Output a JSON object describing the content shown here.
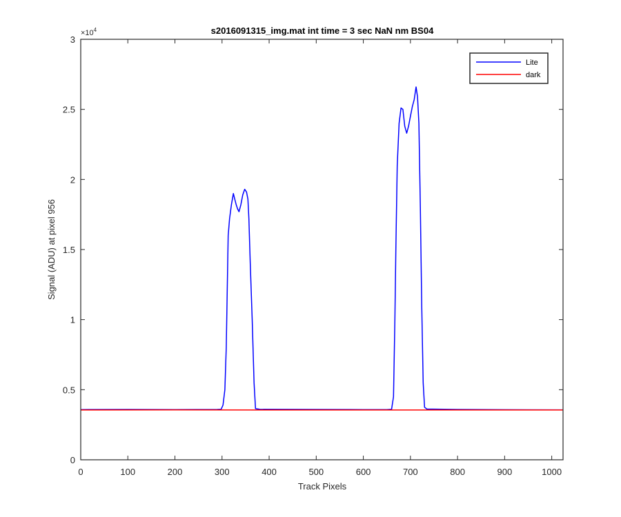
{
  "chart_data": {
    "type": "line",
    "title": "s2016091315_img.mat int time = 3 sec  NaN nm BS04",
    "xlabel": "Track Pixels",
    "ylabel": "Signal (ADU) at pixel 956",
    "xlim": [
      0,
      1024
    ],
    "ylim": [
      0,
      30000
    ],
    "x_ticks": [
      "0",
      "100",
      "200",
      "300",
      "400",
      "500",
      "600",
      "700",
      "800",
      "900",
      "1000"
    ],
    "y_ticks": [
      "0",
      "0.5",
      "1",
      "1.5",
      "2",
      "2.5",
      "3"
    ],
    "y_exponent": {
      "base": "×10",
      "power": "4"
    },
    "legend_position": "top-right",
    "grid": false,
    "series": [
      {
        "name": "Lite",
        "color": "#0000ff",
        "points": [
          [
            0,
            3580
          ],
          [
            100,
            3590
          ],
          [
            200,
            3580
          ],
          [
            290,
            3590
          ],
          [
            298,
            3600
          ],
          [
            302,
            3900
          ],
          [
            306,
            5000
          ],
          [
            309,
            8000
          ],
          [
            311,
            12000
          ],
          [
            313,
            16000
          ],
          [
            316,
            17200
          ],
          [
            320,
            18200
          ],
          [
            324,
            19000
          ],
          [
            327,
            18600
          ],
          [
            330,
            18200
          ],
          [
            333,
            17900
          ],
          [
            336,
            17700
          ],
          [
            340,
            18200
          ],
          [
            344,
            18900
          ],
          [
            348,
            19300
          ],
          [
            352,
            19100
          ],
          [
            355,
            18600
          ],
          [
            357,
            17200
          ],
          [
            360,
            14000
          ],
          [
            364,
            10000
          ],
          [
            368,
            5500
          ],
          [
            371,
            3650
          ],
          [
            380,
            3600
          ],
          [
            500,
            3590
          ],
          [
            600,
            3580
          ],
          [
            650,
            3580
          ],
          [
            660,
            3600
          ],
          [
            664,
            4500
          ],
          [
            667,
            10000
          ],
          [
            669,
            15000
          ],
          [
            672,
            21000
          ],
          [
            676,
            24000
          ],
          [
            680,
            25100
          ],
          [
            684,
            25000
          ],
          [
            688,
            23800
          ],
          [
            692,
            23300
          ],
          [
            696,
            23800
          ],
          [
            700,
            24500
          ],
          [
            704,
            25200
          ],
          [
            708,
            25700
          ],
          [
            712,
            26600
          ],
          [
            715,
            25900
          ],
          [
            718,
            24000
          ],
          [
            721,
            18000
          ],
          [
            724,
            11000
          ],
          [
            727,
            5500
          ],
          [
            730,
            3750
          ],
          [
            735,
            3620
          ],
          [
            800,
            3590
          ],
          [
            900,
            3570
          ],
          [
            1024,
            3560
          ]
        ]
      },
      {
        "name": "dark",
        "color": "#ff0000",
        "points": [
          [
            0,
            3550
          ],
          [
            200,
            3560
          ],
          [
            400,
            3550
          ],
          [
            600,
            3555
          ],
          [
            800,
            3550
          ],
          [
            1024,
            3550
          ]
        ]
      }
    ]
  }
}
